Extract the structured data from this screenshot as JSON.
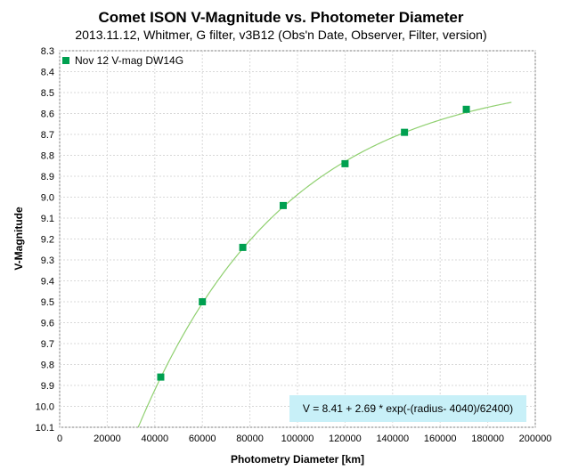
{
  "chart_data": {
    "type": "scatter",
    "title": "Comet ISON V-Magnitude vs. Photometer Diameter",
    "subtitle": "2013.11.12, Whitmer, G filter, v3B12 (Obs'n Date, Observer, Filter, version)",
    "xlabel": "Photometry Diameter  [km]",
    "ylabel": "V-Magnitude",
    "xlim": [
      0,
      200000
    ],
    "ylim": [
      8.3,
      10.1
    ],
    "y_inverted": true,
    "grid": true,
    "legend_position": "top-left",
    "x_ticks": [
      "0",
      "20000",
      "40000",
      "60000",
      "80000",
      "100000",
      "120000",
      "140000",
      "160000",
      "180000",
      "200000"
    ],
    "y_ticks": [
      "8.3",
      "8.4",
      "8.5",
      "8.6",
      "8.7",
      "8.8",
      "8.9",
      "9.0",
      "9.1",
      "9.2",
      "9.3",
      "9.4",
      "9.5",
      "9.6",
      "9.7",
      "9.8",
      "9.9",
      "10.0",
      "10.1"
    ],
    "series": [
      {
        "name": "Nov 12 V-mag DW14G",
        "color": "#00a050",
        "marker": "square",
        "x": [
          42500,
          60000,
          77000,
          94000,
          120000,
          145000,
          171000
        ],
        "y": [
          9.86,
          9.5,
          9.24,
          9.04,
          8.84,
          8.69,
          8.58
        ]
      }
    ],
    "fit": {
      "color": "#90d070",
      "equation": "V = 8.41 + 2.69 * exp(-(radius- 4040)/62400)",
      "a": 8.41,
      "b": 2.69,
      "x0": 4040,
      "scale": 62400,
      "x_range": [
        33000,
        190000
      ]
    }
  }
}
